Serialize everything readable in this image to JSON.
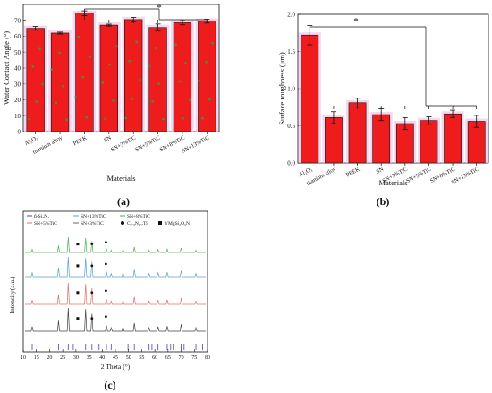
{
  "panels": {
    "a": {
      "label": "(a)"
    },
    "b": {
      "label": "(b)"
    },
    "c": {
      "label": "(c)"
    }
  },
  "chart_data": [
    {
      "id": "a",
      "type": "bar",
      "title": "",
      "xlabel": "Materials",
      "ylabel": "Water Contact Angle (°)",
      "categories": [
        "Al₂O₃",
        "titanium alloy",
        "PEEK",
        "SN",
        "SN+3%TiC",
        "SN+5%TiC",
        "SN+8%TiC",
        "SN+13%TiC"
      ],
      "values": [
        65,
        62,
        74.5,
        67,
        70.5,
        65.5,
        68.5,
        69.5
      ],
      "errors": [
        1.2,
        0.6,
        1.5,
        0.6,
        1.3,
        2.2,
        1.3,
        1.2
      ],
      "ylim": [
        0,
        80
      ],
      "yticks": [
        0,
        10,
        20,
        30,
        40,
        50,
        60,
        70
      ],
      "significance": "*",
      "bar_color": "#ee1c1c",
      "scatter_color": "#2ea043"
    },
    {
      "id": "b",
      "type": "bar",
      "title": "",
      "xlabel": "Materials",
      "ylabel": "Surface roughness (μm)",
      "categories": [
        "Al₂O₃",
        "titanium alloy",
        "PEEK",
        "SN",
        "SN+3%TiC",
        "SN+5%TiC",
        "SN+8%TiC",
        "SN+13%TiC"
      ],
      "values": [
        1.72,
        0.61,
        0.81,
        0.65,
        0.53,
        0.57,
        0.66,
        0.56
      ],
      "errors": [
        0.13,
        0.08,
        0.06,
        0.08,
        0.08,
        0.05,
        0.05,
        0.08
      ],
      "ylim": [
        0,
        2.0
      ],
      "yticks": [
        "0.0",
        "0.5",
        "1.0",
        "1.5",
        "2.0"
      ],
      "significance": "*",
      "bar_color": "#ee1c1c"
    },
    {
      "id": "c",
      "type": "line",
      "title": "",
      "xlabel": "2 Theta (°)",
      "ylabel": "Intensity(a.u.)",
      "xlim": [
        10,
        80
      ],
      "xticks": [
        10,
        15,
        20,
        25,
        30,
        35,
        40,
        45,
        50,
        55,
        60,
        65,
        70,
        75,
        80
      ],
      "legend": [
        {
          "name": "β-Si₃N₄",
          "color": "#4b3fc4",
          "marker": "line"
        },
        {
          "name": "SN+13%TiC",
          "color": "#5aa0d8",
          "marker": "line"
        },
        {
          "name": "SN+8%TiC",
          "color": "#4db34d",
          "marker": "line"
        },
        {
          "name": "SN+5%TiC",
          "color": "#e0716a",
          "marker": "line"
        },
        {
          "name": "SN+3%TiC",
          "color": "#666666",
          "marker": "line"
        },
        {
          "name": "C₀.₃N₀.₇Ti",
          "color": "#111111",
          "marker": "circle"
        },
        {
          "name": "YMgSi₂O₅N",
          "color": "#111111",
          "marker": "square"
        }
      ],
      "series": [
        {
          "name": "SN+8%TiC",
          "color": "#4db34d"
        },
        {
          "name": "SN+13%TiC",
          "color": "#5aa0d8"
        },
        {
          "name": "SN+5%TiC",
          "color": "#e0716a"
        },
        {
          "name": "SN+3%TiC",
          "color": "#444444"
        }
      ],
      "peaks": [
        {
          "x": 13.4,
          "h": 0.2
        },
        {
          "x": 23.4,
          "h": 0.45
        },
        {
          "x": 27.1,
          "h": 1.0
        },
        {
          "x": 33.7,
          "h": 0.95
        },
        {
          "x": 36.1,
          "h": 0.75
        },
        {
          "x": 41.6,
          "h": 0.25
        },
        {
          "x": 43.4,
          "h": 0.15
        },
        {
          "x": 47.9,
          "h": 0.2
        },
        {
          "x": 52.2,
          "h": 0.35
        },
        {
          "x": 57.8,
          "h": 0.15
        },
        {
          "x": 61.2,
          "h": 0.2
        },
        {
          "x": 64.7,
          "h": 0.22
        },
        {
          "x": 70.0,
          "h": 0.3
        },
        {
          "x": 75.6,
          "h": 0.15
        }
      ],
      "ref_ticks": [
        13.4,
        23.4,
        27.1,
        29.0,
        33.7,
        36.1,
        38.8,
        41.6,
        43.4,
        47.9,
        49.8,
        52.2,
        57.8,
        58.9,
        61.2,
        63.9,
        64.7,
        66.0,
        67.0,
        70.0,
        71.1,
        75.6,
        78.1
      ]
    }
  ]
}
